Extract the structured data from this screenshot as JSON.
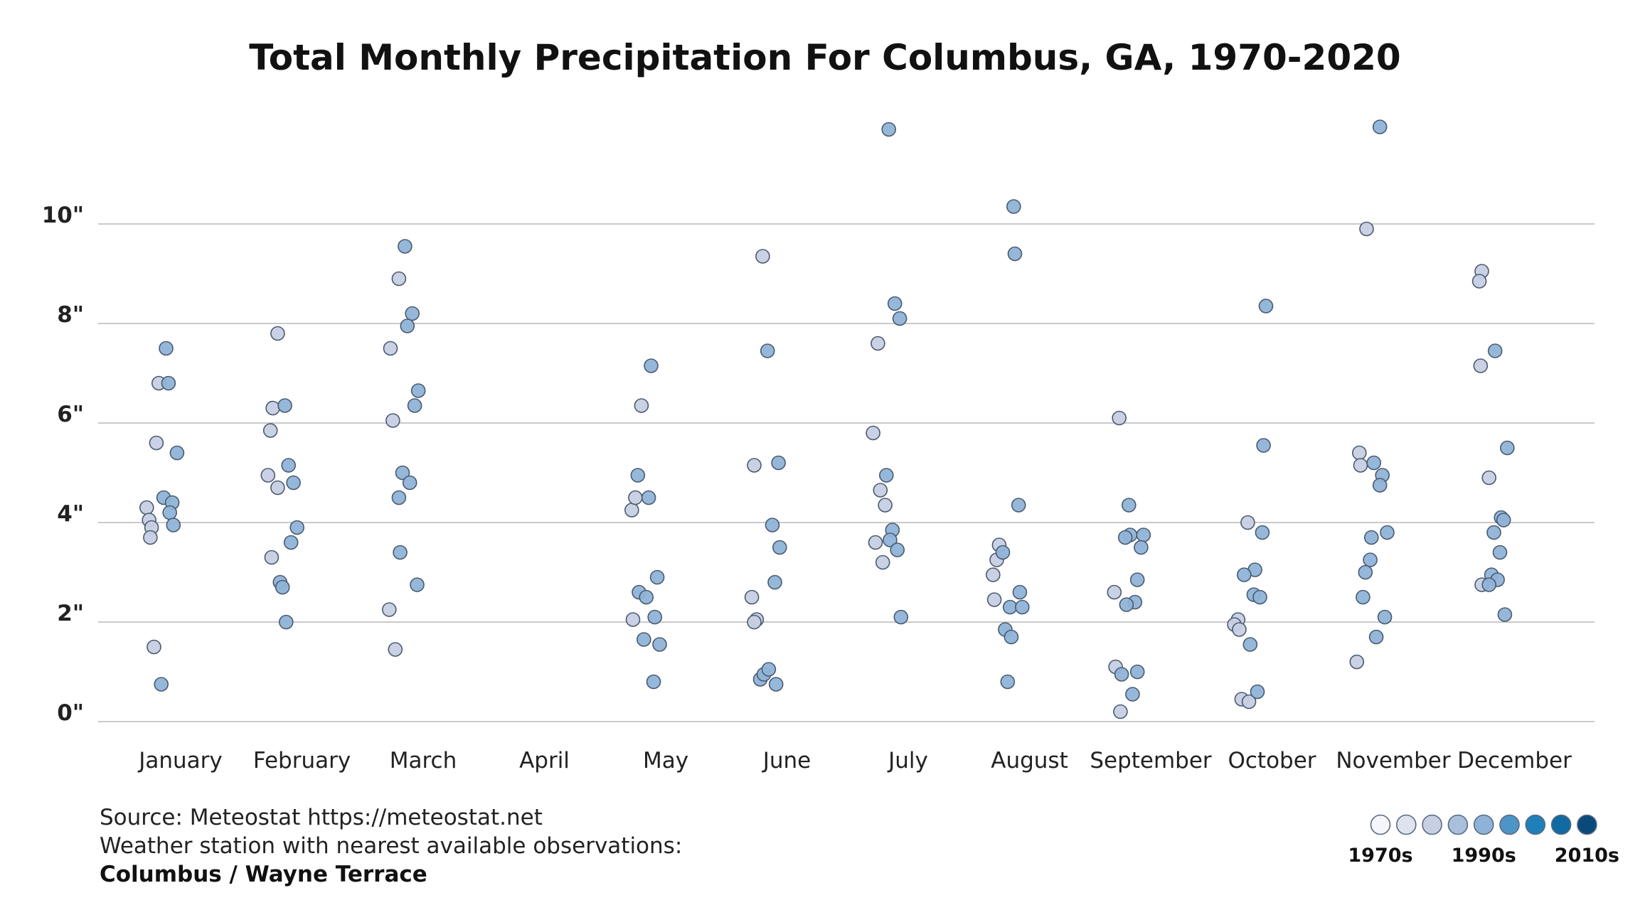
{
  "chart_data": {
    "type": "scatter",
    "title": "Total Monthly Precipitation For Columbus, GA, 1970-2020",
    "xlabel": "",
    "ylabel": "",
    "ylim": [
      0,
      12
    ],
    "y_ticks": [
      {
        "value": 0,
        "label": "0\""
      },
      {
        "value": 2,
        "label": "2\""
      },
      {
        "value": 4,
        "label": "4\""
      },
      {
        "value": 6,
        "label": "6\""
      },
      {
        "value": 8,
        "label": "8\""
      },
      {
        "value": 10,
        "label": "10\""
      }
    ],
    "categories": [
      "January",
      "February",
      "March",
      "April",
      "May",
      "June",
      "July",
      "August",
      "September",
      "October",
      "November",
      "December"
    ],
    "decade_colors": {
      "1970s": "#f4f6fb",
      "1980s": "#c7cfe3",
      "1990s": "#8fb3d8",
      "2000s": "#1f7fb8",
      "2010s": "#0a4a7a"
    },
    "series": [
      {
        "month": "January",
        "values": [
          {
            "v": 4.3,
            "j": -0.28,
            "d": "1980s"
          },
          {
            "v": 4.05,
            "j": -0.26,
            "d": "1980s"
          },
          {
            "v": 3.9,
            "j": -0.24,
            "d": "1980s"
          },
          {
            "v": 3.7,
            "j": -0.25,
            "d": "1980s"
          },
          {
            "v": 6.8,
            "j": -0.18,
            "d": "1980s"
          },
          {
            "v": 5.6,
            "j": -0.2,
            "d": "1980s"
          },
          {
            "v": 1.5,
            "j": -0.22,
            "d": "1980s"
          },
          {
            "v": 0.75,
            "j": -0.16,
            "d": "1990s"
          },
          {
            "v": 7.5,
            "j": -0.12,
            "d": "1990s"
          },
          {
            "v": 6.8,
            "j": -0.1,
            "d": "1990s"
          },
          {
            "v": 4.5,
            "j": -0.14,
            "d": "1990s"
          },
          {
            "v": 4.4,
            "j": -0.07,
            "d": "1990s"
          },
          {
            "v": 4.2,
            "j": -0.09,
            "d": "1990s"
          },
          {
            "v": 3.95,
            "j": -0.06,
            "d": "1990s"
          },
          {
            "v": 5.4,
            "j": -0.03,
            "d": "1990s"
          }
        ]
      },
      {
        "month": "February",
        "values": [
          {
            "v": 7.8,
            "j": -0.2,
            "d": "1980s"
          },
          {
            "v": 6.3,
            "j": -0.24,
            "d": "1980s"
          },
          {
            "v": 5.85,
            "j": -0.26,
            "d": "1980s"
          },
          {
            "v": 4.95,
            "j": -0.28,
            "d": "1980s"
          },
          {
            "v": 4.7,
            "j": -0.2,
            "d": "1980s"
          },
          {
            "v": 3.3,
            "j": -0.25,
            "d": "1980s"
          },
          {
            "v": 6.35,
            "j": -0.14,
            "d": "1990s"
          },
          {
            "v": 5.15,
            "j": -0.11,
            "d": "1990s"
          },
          {
            "v": 4.8,
            "j": -0.07,
            "d": "1990s"
          },
          {
            "v": 3.9,
            "j": -0.04,
            "d": "1990s"
          },
          {
            "v": 3.6,
            "j": -0.09,
            "d": "1990s"
          },
          {
            "v": 2.8,
            "j": -0.18,
            "d": "1990s"
          },
          {
            "v": 2.7,
            "j": -0.16,
            "d": "1990s"
          },
          {
            "v": 2.0,
            "j": -0.13,
            "d": "1990s"
          }
        ]
      },
      {
        "month": "March",
        "values": [
          {
            "v": 8.9,
            "j": -0.2,
            "d": "1980s"
          },
          {
            "v": 7.5,
            "j": -0.27,
            "d": "1980s"
          },
          {
            "v": 6.05,
            "j": -0.25,
            "d": "1980s"
          },
          {
            "v": 2.25,
            "j": -0.28,
            "d": "1980s"
          },
          {
            "v": 1.45,
            "j": -0.23,
            "d": "1980s"
          },
          {
            "v": 9.55,
            "j": -0.15,
            "d": "1990s"
          },
          {
            "v": 8.2,
            "j": -0.09,
            "d": "1990s"
          },
          {
            "v": 7.95,
            "j": -0.13,
            "d": "1990s"
          },
          {
            "v": 6.65,
            "j": -0.04,
            "d": "1990s"
          },
          {
            "v": 6.35,
            "j": -0.07,
            "d": "1990s"
          },
          {
            "v": 5.0,
            "j": -0.17,
            "d": "1990s"
          },
          {
            "v": 4.8,
            "j": -0.11,
            "d": "1990s"
          },
          {
            "v": 4.5,
            "j": -0.2,
            "d": "1990s"
          },
          {
            "v": 3.4,
            "j": -0.19,
            "d": "1990s"
          },
          {
            "v": 2.75,
            "j": -0.05,
            "d": "1990s"
          }
        ]
      },
      {
        "month": "April",
        "values": []
      },
      {
        "month": "May",
        "values": [
          {
            "v": 6.35,
            "j": -0.2,
            "d": "1980s"
          },
          {
            "v": 4.25,
            "j": -0.28,
            "d": "1980s"
          },
          {
            "v": 4.5,
            "j": -0.25,
            "d": "1980s"
          },
          {
            "v": 2.05,
            "j": -0.27,
            "d": "1980s"
          },
          {
            "v": 7.15,
            "j": -0.12,
            "d": "1990s"
          },
          {
            "v": 4.95,
            "j": -0.23,
            "d": "1990s"
          },
          {
            "v": 4.5,
            "j": -0.14,
            "d": "1990s"
          },
          {
            "v": 2.6,
            "j": -0.22,
            "d": "1990s"
          },
          {
            "v": 2.5,
            "j": -0.16,
            "d": "1990s"
          },
          {
            "v": 2.9,
            "j": -0.07,
            "d": "1990s"
          },
          {
            "v": 2.1,
            "j": -0.09,
            "d": "1990s"
          },
          {
            "v": 1.65,
            "j": -0.18,
            "d": "1990s"
          },
          {
            "v": 1.55,
            "j": -0.05,
            "d": "1990s"
          },
          {
            "v": 0.8,
            "j": -0.1,
            "d": "1990s"
          }
        ]
      },
      {
        "month": "June",
        "values": [
          {
            "v": 9.35,
            "j": -0.2,
            "d": "1980s"
          },
          {
            "v": 5.15,
            "j": -0.27,
            "d": "1980s"
          },
          {
            "v": 2.5,
            "j": -0.29,
            "d": "1980s"
          },
          {
            "v": 2.05,
            "j": -0.25,
            "d": "1980s"
          },
          {
            "v": 2.0,
            "j": -0.27,
            "d": "1980s"
          },
          {
            "v": 7.45,
            "j": -0.16,
            "d": "1990s"
          },
          {
            "v": 5.2,
            "j": -0.07,
            "d": "1990s"
          },
          {
            "v": 3.95,
            "j": -0.12,
            "d": "1990s"
          },
          {
            "v": 3.5,
            "j": -0.06,
            "d": "1990s"
          },
          {
            "v": 2.8,
            "j": -0.1,
            "d": "1990s"
          },
          {
            "v": 0.85,
            "j": -0.22,
            "d": "1990s"
          },
          {
            "v": 0.95,
            "j": -0.19,
            "d": "1990s"
          },
          {
            "v": 1.05,
            "j": -0.15,
            "d": "1990s"
          },
          {
            "v": 0.75,
            "j": -0.09,
            "d": "1990s"
          }
        ]
      },
      {
        "month": "July",
        "values": [
          {
            "v": 7.6,
            "j": -0.25,
            "d": "1980s"
          },
          {
            "v": 5.8,
            "j": -0.29,
            "d": "1980s"
          },
          {
            "v": 4.65,
            "j": -0.23,
            "d": "1980s"
          },
          {
            "v": 4.35,
            "j": -0.19,
            "d": "1980s"
          },
          {
            "v": 3.6,
            "j": -0.27,
            "d": "1980s"
          },
          {
            "v": 3.2,
            "j": -0.21,
            "d": "1980s"
          },
          {
            "v": 11.9,
            "j": -0.16,
            "d": "1990s"
          },
          {
            "v": 8.4,
            "j": -0.11,
            "d": "1990s"
          },
          {
            "v": 8.1,
            "j": -0.07,
            "d": "1990s"
          },
          {
            "v": 4.95,
            "j": -0.18,
            "d": "1990s"
          },
          {
            "v": 3.85,
            "j": -0.13,
            "d": "1990s"
          },
          {
            "v": 3.65,
            "j": -0.15,
            "d": "1990s"
          },
          {
            "v": 3.45,
            "j": -0.09,
            "d": "1990s"
          },
          {
            "v": 2.1,
            "j": -0.06,
            "d": "1990s"
          }
        ]
      },
      {
        "month": "August",
        "values": [
          {
            "v": 3.55,
            "j": -0.25,
            "d": "1980s"
          },
          {
            "v": 3.25,
            "j": -0.27,
            "d": "1980s"
          },
          {
            "v": 2.95,
            "j": -0.3,
            "d": "1980s"
          },
          {
            "v": 2.45,
            "j": -0.29,
            "d": "1980s"
          },
          {
            "v": 10.35,
            "j": -0.13,
            "d": "1990s"
          },
          {
            "v": 9.4,
            "j": -0.12,
            "d": "1990s"
          },
          {
            "v": 4.35,
            "j": -0.09,
            "d": "1990s"
          },
          {
            "v": 3.4,
            "j": -0.22,
            "d": "1990s"
          },
          {
            "v": 2.6,
            "j": -0.08,
            "d": "1990s"
          },
          {
            "v": 2.3,
            "j": -0.16,
            "d": "1990s"
          },
          {
            "v": 2.3,
            "j": -0.06,
            "d": "1990s"
          },
          {
            "v": 1.85,
            "j": -0.2,
            "d": "1990s"
          },
          {
            "v": 1.7,
            "j": -0.15,
            "d": "1990s"
          },
          {
            "v": 0.8,
            "j": -0.18,
            "d": "1990s"
          }
        ]
      },
      {
        "month": "September",
        "values": [
          {
            "v": 6.1,
            "j": -0.26,
            "d": "1980s"
          },
          {
            "v": 2.6,
            "j": -0.3,
            "d": "1980s"
          },
          {
            "v": 1.1,
            "j": -0.29,
            "d": "1980s"
          },
          {
            "v": 0.2,
            "j": -0.25,
            "d": "1980s"
          },
          {
            "v": 4.35,
            "j": -0.18,
            "d": "1990s"
          },
          {
            "v": 3.75,
            "j": -0.17,
            "d": "1990s"
          },
          {
            "v": 3.7,
            "j": -0.21,
            "d": "1990s"
          },
          {
            "v": 3.75,
            "j": -0.06,
            "d": "1990s"
          },
          {
            "v": 3.5,
            "j": -0.08,
            "d": "1990s"
          },
          {
            "v": 2.85,
            "j": -0.11,
            "d": "1990s"
          },
          {
            "v": 2.4,
            "j": -0.13,
            "d": "1990s"
          },
          {
            "v": 2.35,
            "j": -0.2,
            "d": "1990s"
          },
          {
            "v": 1.0,
            "j": -0.11,
            "d": "1990s"
          },
          {
            "v": 0.55,
            "j": -0.15,
            "d": "1990s"
          },
          {
            "v": 0.95,
            "j": -0.24,
            "d": "1990s"
          }
        ]
      },
      {
        "month": "October",
        "values": [
          {
            "v": 4.0,
            "j": -0.2,
            "d": "1980s"
          },
          {
            "v": 2.05,
            "j": -0.28,
            "d": "1980s"
          },
          {
            "v": 1.95,
            "j": -0.31,
            "d": "1980s"
          },
          {
            "v": 1.85,
            "j": -0.27,
            "d": "1980s"
          },
          {
            "v": 0.45,
            "j": -0.25,
            "d": "1980s"
          },
          {
            "v": 0.4,
            "j": -0.19,
            "d": "1980s"
          },
          {
            "v": 8.35,
            "j": -0.05,
            "d": "1990s"
          },
          {
            "v": 5.55,
            "j": -0.07,
            "d": "1990s"
          },
          {
            "v": 3.8,
            "j": -0.08,
            "d": "1990s"
          },
          {
            "v": 3.05,
            "j": -0.14,
            "d": "1990s"
          },
          {
            "v": 2.95,
            "j": -0.23,
            "d": "1990s"
          },
          {
            "v": 2.55,
            "j": -0.15,
            "d": "1990s"
          },
          {
            "v": 2.5,
            "j": -0.1,
            "d": "1990s"
          },
          {
            "v": 1.55,
            "j": -0.18,
            "d": "1990s"
          },
          {
            "v": 0.6,
            "j": -0.12,
            "d": "1990s"
          }
        ]
      },
      {
        "month": "November",
        "values": [
          {
            "v": 9.9,
            "j": -0.22,
            "d": "1980s"
          },
          {
            "v": 5.4,
            "j": -0.28,
            "d": "1980s"
          },
          {
            "v": 5.15,
            "j": -0.27,
            "d": "1980s"
          },
          {
            "v": 1.2,
            "j": -0.3,
            "d": "1980s"
          },
          {
            "v": 11.95,
            "j": -0.11,
            "d": "1990s"
          },
          {
            "v": 5.2,
            "j": -0.16,
            "d": "1990s"
          },
          {
            "v": 4.95,
            "j": -0.09,
            "d": "1990s"
          },
          {
            "v": 4.75,
            "j": -0.11,
            "d": "1990s"
          },
          {
            "v": 3.8,
            "j": -0.05,
            "d": "1990s"
          },
          {
            "v": 3.7,
            "j": -0.18,
            "d": "1990s"
          },
          {
            "v": 3.25,
            "j": -0.19,
            "d": "1990s"
          },
          {
            "v": 3.0,
            "j": -0.23,
            "d": "1990s"
          },
          {
            "v": 2.5,
            "j": -0.25,
            "d": "1990s"
          },
          {
            "v": 2.1,
            "j": -0.07,
            "d": "1990s"
          },
          {
            "v": 1.7,
            "j": -0.14,
            "d": "1990s"
          }
        ]
      },
      {
        "month": "December",
        "values": [
          {
            "v": 9.05,
            "j": -0.27,
            "d": "1980s"
          },
          {
            "v": 8.85,
            "j": -0.29,
            "d": "1980s"
          },
          {
            "v": 7.15,
            "j": -0.28,
            "d": "1980s"
          },
          {
            "v": 4.9,
            "j": -0.21,
            "d": "1980s"
          },
          {
            "v": 2.75,
            "j": -0.27,
            "d": "1980s"
          },
          {
            "v": 7.45,
            "j": -0.16,
            "d": "1990s"
          },
          {
            "v": 5.5,
            "j": -0.06,
            "d": "1990s"
          },
          {
            "v": 4.1,
            "j": -0.11,
            "d": "1990s"
          },
          {
            "v": 4.05,
            "j": -0.09,
            "d": "1990s"
          },
          {
            "v": 3.8,
            "j": -0.17,
            "d": "1990s"
          },
          {
            "v": 3.4,
            "j": -0.12,
            "d": "1990s"
          },
          {
            "v": 2.95,
            "j": -0.19,
            "d": "1990s"
          },
          {
            "v": 2.85,
            "j": -0.14,
            "d": "1990s"
          },
          {
            "v": 2.75,
            "j": -0.21,
            "d": "1990s"
          },
          {
            "v": 2.15,
            "j": -0.08,
            "d": "1990s"
          }
        ]
      }
    ],
    "legend": {
      "colors": [
        "#f4f6fb",
        "#dfe3ef",
        "#c7cfe3",
        "#a9c0dc",
        "#8fb3d8",
        "#4d95c6",
        "#1f7fb8",
        "#126aa3",
        "#0a4a7a"
      ],
      "labels": [
        "1970s",
        "1990s",
        "2010s"
      ]
    }
  },
  "footer": {
    "source": "Source: Meteostat https://meteostat.net",
    "station_note": "Weather station with nearest available observations:",
    "station_name": "Columbus / Wayne Terrace"
  }
}
